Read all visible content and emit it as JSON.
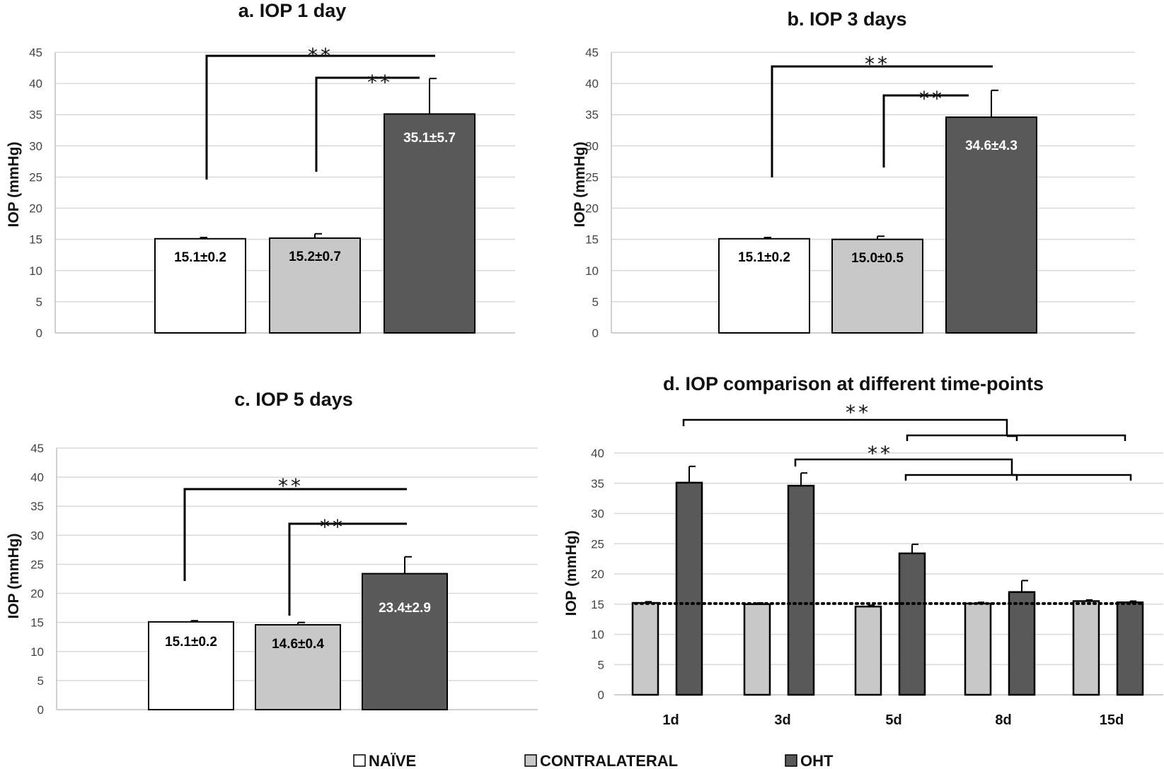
{
  "legend": [
    {
      "name": "NAÏVE",
      "color": "#ffffff"
    },
    {
      "name": "CONTRALATERAL",
      "color": "#c8c8c8"
    },
    {
      "name": "OHT",
      "color": "#595959"
    }
  ],
  "sig_marker": "**",
  "chart_data": [
    {
      "type": "bar",
      "title": "a. IOP 1 day",
      "ylabel": "IOP (mmHg)",
      "ylim": [
        0,
        45
      ],
      "yticks": [
        0,
        5,
        10,
        15,
        20,
        25,
        30,
        35,
        40,
        45
      ],
      "categories": [
        "NAÏVE",
        "CONTRALATERAL",
        "OHT"
      ],
      "values": [
        15.1,
        15.2,
        35.1
      ],
      "errors": [
        0.2,
        0.7,
        5.7
      ],
      "labels": [
        "15.1±0.2",
        "15.2±0.7",
        "35.1±5.7"
      ],
      "significance": [
        "**",
        "**"
      ]
    },
    {
      "type": "bar",
      "title": "b. IOP 3 days",
      "ylabel": "IOP (mmHg)",
      "ylim": [
        0,
        45
      ],
      "yticks": [
        0,
        5,
        10,
        15,
        20,
        25,
        30,
        35,
        40,
        45
      ],
      "categories": [
        "NAÏVE",
        "CONTRALATERAL",
        "OHT"
      ],
      "values": [
        15.1,
        15.0,
        34.6
      ],
      "errors": [
        0.2,
        0.5,
        4.3
      ],
      "labels": [
        "15.1±0.2",
        "15.0±0.5",
        "34.6±4.3"
      ],
      "significance": [
        "**",
        "**"
      ]
    },
    {
      "type": "bar",
      "title": "c. IOP 5 days",
      "ylabel": "IOP (mmHg)",
      "ylim": [
        0,
        45
      ],
      "yticks": [
        0,
        5,
        10,
        15,
        20,
        25,
        30,
        35,
        40,
        45
      ],
      "categories": [
        "NAÏVE",
        "CONTRALATERAL",
        "OHT"
      ],
      "values": [
        15.1,
        14.6,
        23.4
      ],
      "errors": [
        0.2,
        0.4,
        2.9
      ],
      "labels": [
        "15.1±0.2",
        "14.6±0.4",
        "23.4±2.9"
      ],
      "significance": [
        "**",
        "**"
      ]
    },
    {
      "type": "bar",
      "title": "d. IOP comparison at different time-points",
      "ylabel": "IOP (mmHg)",
      "ylim": [
        0,
        40
      ],
      "yticks": [
        0,
        5,
        10,
        15,
        20,
        25,
        30,
        35,
        40
      ],
      "categories": [
        "1d",
        "3d",
        "5d",
        "8d",
        "15d"
      ],
      "series": [
        {
          "name": "CONTRALATERAL",
          "values": [
            15.2,
            15.0,
            14.6,
            15.1,
            15.5
          ],
          "errors": [
            0.2,
            0.2,
            0.2,
            0.2,
            0.2
          ]
        },
        {
          "name": "OHT",
          "values": [
            35.1,
            34.6,
            23.4,
            17.0,
            15.3
          ],
          "errors": [
            2.7,
            2.1,
            1.5,
            1.9,
            0.2
          ]
        }
      ],
      "reference_line": 15.1,
      "significance": [
        "**",
        "**"
      ]
    }
  ]
}
